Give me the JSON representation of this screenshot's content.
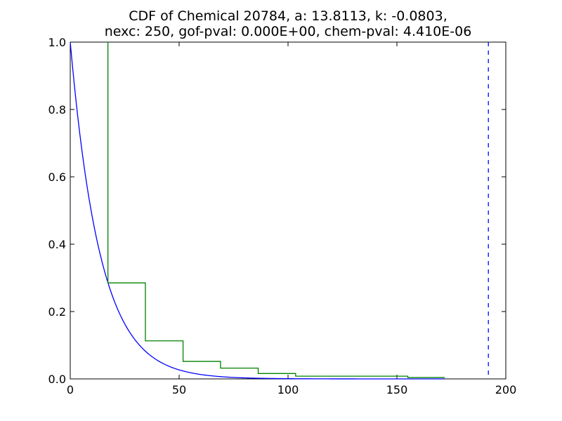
{
  "chart_data": {
    "type": "line",
    "title_lines": [
      "CDF of Chemical 20784, a: 13.8113, k: -0.0803,",
      "nexc: 250, gof-pval: 0.000E+00, chem-pval: 4.410E-06"
    ],
    "xlabel": "",
    "ylabel": "",
    "xlim": [
      0,
      200
    ],
    "ylim": [
      0,
      1.0
    ],
    "x_ticks": [
      0,
      50,
      100,
      150,
      200
    ],
    "x_tick_labels": [
      "0",
      "50",
      "100",
      "150",
      "200"
    ],
    "y_ticks": [
      0.0,
      0.2,
      0.4,
      0.6,
      0.8,
      1.0
    ],
    "y_tick_labels": [
      "0.0",
      "0.2",
      "0.4",
      "0.6",
      "0.8",
      "1.0"
    ],
    "grid": false,
    "series": [
      {
        "kind": "fitted-curve",
        "color": "#0000ff",
        "style": "solid",
        "parameters": {
          "a": 13.8113,
          "k": -0.0803
        }
      },
      {
        "kind": "empirical-step",
        "color": "#008000",
        "style": "solid",
        "steps": [
          {
            "x0": 17.3,
            "x1": 34.5,
            "y": 0.285
          },
          {
            "x0": 34.5,
            "x1": 51.8,
            "y": 0.113
          },
          {
            "x0": 51.8,
            "x1": 69.0,
            "y": 0.052
          },
          {
            "x0": 69.0,
            "x1": 86.3,
            "y": 0.032
          },
          {
            "x0": 86.3,
            "x1": 103.5,
            "y": 0.016
          },
          {
            "x0": 103.5,
            "x1": 155.0,
            "y": 0.008
          },
          {
            "x0": 155.0,
            "x1": 172.0,
            "y": 0.004
          }
        ],
        "initial_y": 1.0
      },
      {
        "kind": "vertical-reference-line",
        "color": "#0000ff",
        "style": "dashed",
        "x": 192.0
      }
    ]
  }
}
